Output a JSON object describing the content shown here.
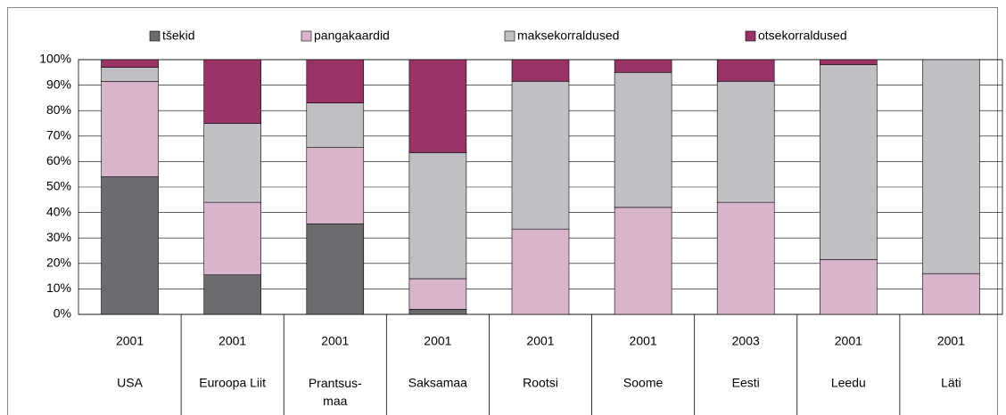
{
  "chart_data": {
    "type": "stacked-bar",
    "categories": [
      "USA",
      "Euroopa Liit",
      "Prantsus-\nmaa",
      "Saksamaa",
      "Rootsi",
      "Soome",
      "Eesti",
      "Leedu",
      "Läti"
    ],
    "years": [
      "2001",
      "2001",
      "2001",
      "2001",
      "2001",
      "2001",
      "2003",
      "2001",
      "2001"
    ],
    "series": [
      {
        "name": "tšekid",
        "color": "#6d6a70",
        "values": [
          54,
          15.5,
          35.5,
          2,
          0,
          0,
          0,
          0,
          0
        ]
      },
      {
        "name": "pangakaardid",
        "color": "#d9b5cc",
        "values": [
          37.5,
          28.5,
          30,
          12,
          33.5,
          42,
          44,
          21.5,
          16
        ]
      },
      {
        "name": "maksekorraldused",
        "color": "#c0c0c4",
        "values": [
          5.5,
          31,
          17.5,
          49.5,
          58,
          53,
          47.5,
          76.5,
          84
        ]
      },
      {
        "name": "otsekorraldused",
        "color": "#993366",
        "values": [
          3,
          25,
          17,
          36.5,
          8.5,
          5,
          8.5,
          2,
          0
        ]
      }
    ],
    "ylim": [
      0,
      100
    ],
    "yticks": [
      {
        "value": 0,
        "label": "0%"
      },
      {
        "value": 10,
        "label": "10%"
      },
      {
        "value": 20,
        "label": "20%"
      },
      {
        "value": 30,
        "label": "30%"
      },
      {
        "value": 40,
        "label": "40%"
      },
      {
        "value": 50,
        "label": "50%"
      },
      {
        "value": 60,
        "label": "60%"
      },
      {
        "value": 70,
        "label": "70%"
      },
      {
        "value": 80,
        "label": "80%"
      },
      {
        "value": 90,
        "label": "90%"
      },
      {
        "value": 100,
        "label": "100%"
      }
    ],
    "grid": true,
    "legend": "top"
  }
}
